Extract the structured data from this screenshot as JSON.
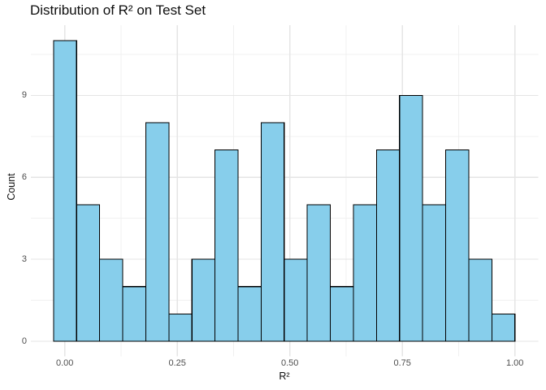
{
  "chart_data": {
    "type": "bar",
    "subtype": "histogram",
    "title": "Distribution of R² on Test Set",
    "xlabel": "R²",
    "ylabel": "Count",
    "bins": 20,
    "bin_start": -0.025,
    "bin_width": 0.05125,
    "counts": [
      11,
      5,
      3,
      2,
      8,
      1,
      3,
      7,
      2,
      8,
      3,
      5,
      2,
      5,
      7,
      9,
      5,
      7,
      3,
      1
    ],
    "x_ticks": [
      0,
      0.25,
      0.5,
      0.75,
      1
    ],
    "x_tick_labels": [
      "0.00",
      "0.25",
      "0.50",
      "0.75",
      "1.00"
    ],
    "y_ticks": [
      0,
      3,
      6,
      9
    ],
    "y_tick_labels": [
      "0",
      "3",
      "6",
      "9"
    ],
    "x_minor_gridlines": [
      0.125,
      0.375,
      0.625,
      0.875
    ],
    "y_minor_gridlines": [
      1.5,
      4.5,
      7.5,
      10.5
    ],
    "xlim": [
      -0.075,
      1.052
    ],
    "ylim": [
      -0.55,
      11.55
    ],
    "grid": true,
    "legend": false,
    "colors": {
      "bar_fill": "#87CEEB",
      "bar_stroke": "#000000",
      "grid_major": "#E5E5E5",
      "grid_minor": "#F0F0F0",
      "axis_text": "#4D4D4D",
      "title_text": "#0D0D0D",
      "background": "#FFFFFF"
    }
  }
}
